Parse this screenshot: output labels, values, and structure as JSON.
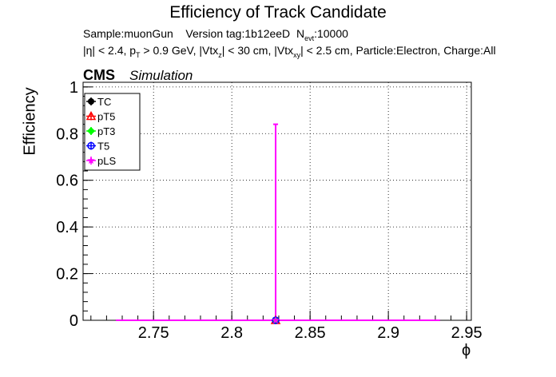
{
  "header": {
    "title": "Efficiency of Track Candidate",
    "sample_label": "Sample:muonGun",
    "version_label": "Version tag:1b12eeD",
    "nevt_label": "N",
    "nevt_sub": "evt",
    "nevt_value": ":10000",
    "cuts": {
      "eta": "|η| < 2.4, p",
      "pt_sub": "T",
      "pt_rest": " > 0.9 GeV, |Vtx",
      "vz_sub": "z",
      "vz_rest": "| < 30 cm, |Vtx",
      "vxy_sub": "xy",
      "vxy_rest": "| < 2.5 cm, Particle:Electron, Charge:All"
    },
    "cms": "CMS",
    "simulation": "Simulation"
  },
  "chart_data": {
    "type": "line",
    "xlabel": "ϕ",
    "ylabel": "Efficiency",
    "xlim": [
      2.705,
      2.953
    ],
    "ylim": [
      0,
      1.02
    ],
    "x_ticks": [
      "2.75",
      "2.8",
      "2.85",
      "2.9",
      "2.95"
    ],
    "y_ticks": [
      "0",
      "0.2",
      "0.4",
      "0.6",
      "0.8",
      "1"
    ],
    "grid": true,
    "legend_position": "top-left",
    "x": [
      2.726,
      2.828,
      2.933
    ],
    "series": [
      {
        "name": "TC",
        "color": "#000000",
        "marker": "circle",
        "values": [
          0,
          0,
          0
        ]
      },
      {
        "name": "pT5",
        "color": "#ff0000",
        "marker": "triangle",
        "values": [
          0,
          0,
          0
        ]
      },
      {
        "name": "pT3",
        "color": "#00ff00",
        "marker": "diamond",
        "values": [
          0,
          0,
          0
        ]
      },
      {
        "name": "T5",
        "color": "#0000ff",
        "marker": "open-circle",
        "values": [
          0,
          0,
          0
        ]
      },
      {
        "name": "pLS",
        "color": "#ff00ff",
        "marker": "star",
        "values": [
          0,
          0,
          0
        ]
      }
    ],
    "error_bar": {
      "x": 2.828,
      "y_low": 0,
      "y_high": 0.84,
      "color": "#ff00ff"
    }
  }
}
